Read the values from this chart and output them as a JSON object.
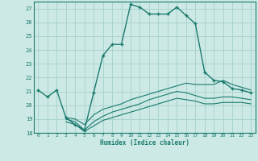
{
  "xlabel": "Humidex (Indice chaleur)",
  "bg_color": "#cce9e5",
  "grid_color": "#aad4cf",
  "line_color": "#1a7a6e",
  "xlim": [
    -0.5,
    23.5
  ],
  "ylim": [
    18,
    27.5
  ],
  "xticks": [
    0,
    1,
    2,
    3,
    4,
    5,
    6,
    7,
    8,
    9,
    10,
    11,
    12,
    13,
    14,
    15,
    16,
    17,
    18,
    19,
    20,
    21,
    22,
    23
  ],
  "yticks": [
    18,
    19,
    20,
    21,
    22,
    23,
    24,
    25,
    26,
    27
  ],
  "series1_x": [
    0,
    1,
    2,
    3,
    4,
    5,
    6,
    7,
    8,
    9,
    10,
    11,
    12,
    13,
    14,
    15,
    16,
    17,
    18,
    19,
    20,
    21,
    22,
    23
  ],
  "series1_y": [
    21.1,
    20.6,
    21.1,
    19.1,
    18.6,
    18.2,
    20.9,
    23.6,
    24.4,
    24.4,
    27.3,
    27.1,
    26.6,
    26.6,
    26.6,
    27.1,
    26.5,
    25.9,
    22.4,
    21.8,
    21.7,
    21.2,
    21.1,
    20.9
  ],
  "series2_x": [
    3,
    4,
    5,
    6,
    7,
    8,
    9,
    10,
    11,
    12,
    13,
    14,
    15,
    16,
    17,
    18,
    19,
    20,
    21,
    22,
    23
  ],
  "series2_y": [
    19.1,
    19.0,
    18.6,
    19.3,
    19.7,
    19.9,
    20.1,
    20.4,
    20.6,
    20.8,
    21.0,
    21.2,
    21.4,
    21.6,
    21.5,
    21.5,
    21.5,
    21.8,
    21.5,
    21.3,
    21.1
  ],
  "series3_x": [
    3,
    4,
    5,
    6,
    7,
    8,
    9,
    10,
    11,
    12,
    13,
    14,
    15,
    16,
    17,
    18,
    19,
    20,
    21,
    22,
    23
  ],
  "series3_y": [
    19.0,
    18.8,
    18.2,
    18.8,
    19.2,
    19.5,
    19.7,
    19.9,
    20.1,
    20.4,
    20.6,
    20.8,
    21.0,
    20.9,
    20.7,
    20.5,
    20.5,
    20.6,
    20.6,
    20.5,
    20.4
  ],
  "series4_x": [
    3,
    4,
    5,
    6,
    7,
    8,
    9,
    10,
    11,
    12,
    13,
    14,
    15,
    16,
    17,
    18,
    19,
    20,
    21,
    22,
    23
  ],
  "series4_y": [
    18.8,
    18.6,
    18.1,
    18.5,
    18.9,
    19.1,
    19.3,
    19.5,
    19.7,
    19.9,
    20.1,
    20.3,
    20.5,
    20.4,
    20.3,
    20.1,
    20.1,
    20.2,
    20.2,
    20.2,
    20.1
  ]
}
